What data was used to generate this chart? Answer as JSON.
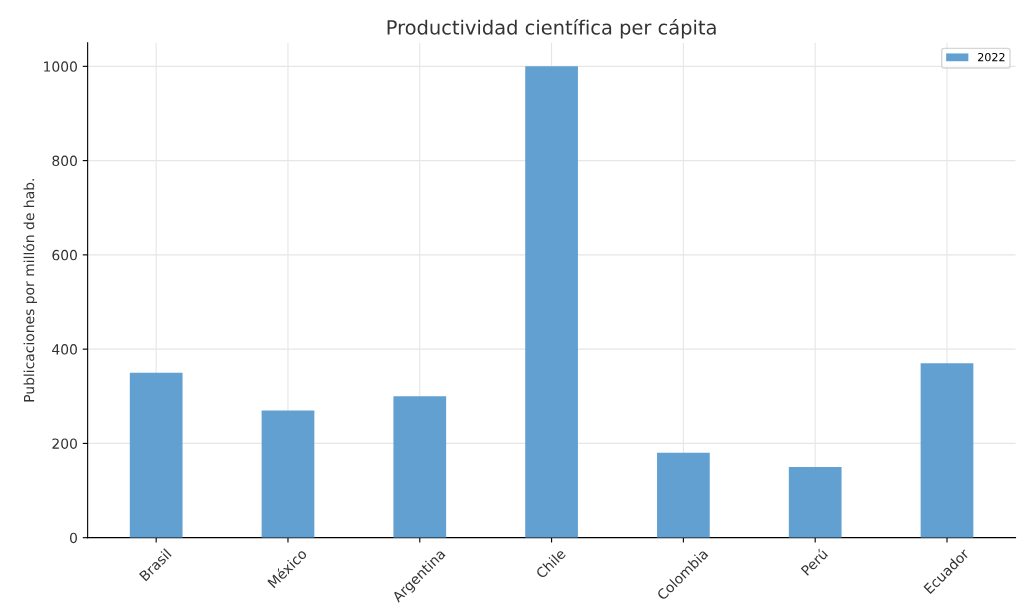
{
  "chart_data": {
    "type": "bar",
    "title": "Productividad científica per cápita",
    "ylabel": "Publicaciones por millón de hab.",
    "categories": [
      "Brasil",
      "México",
      "Argentina",
      "Chile",
      "Colombia",
      "Perú",
      "Ecuador"
    ],
    "series": [
      {
        "name": "2022",
        "color": "#5a9bd0",
        "values": [
          350,
          270,
          300,
          1000,
          180,
          150,
          370
        ]
      }
    ],
    "ylim": [
      0,
      1050
    ],
    "yticks": [
      0,
      200,
      400,
      600,
      800,
      1000
    ],
    "grid": true,
    "legend": "top right"
  }
}
